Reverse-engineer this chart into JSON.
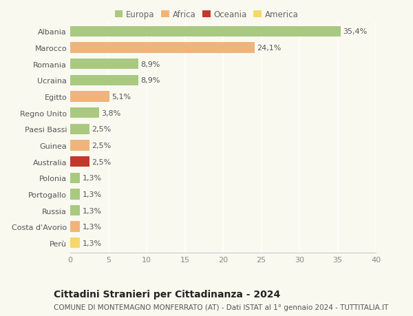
{
  "categories": [
    "Albania",
    "Marocco",
    "Romania",
    "Ucraina",
    "Egitto",
    "Regno Unito",
    "Paesi Bassi",
    "Guinea",
    "Australia",
    "Polonia",
    "Portogallo",
    "Russia",
    "Costa d'Avorio",
    "Perù"
  ],
  "values": [
    35.4,
    24.1,
    8.9,
    8.9,
    5.1,
    3.8,
    2.5,
    2.5,
    2.5,
    1.3,
    1.3,
    1.3,
    1.3,
    1.3
  ],
  "labels": [
    "35,4%",
    "24,1%",
    "8,9%",
    "8,9%",
    "5,1%",
    "3,8%",
    "2,5%",
    "2,5%",
    "2,5%",
    "1,3%",
    "1,3%",
    "1,3%",
    "1,3%",
    "1,3%"
  ],
  "colors": [
    "#a8c97f",
    "#f0b47a",
    "#a8c97f",
    "#a8c97f",
    "#f0b47a",
    "#a8c97f",
    "#a8c97f",
    "#f0b47a",
    "#c0392b",
    "#a8c97f",
    "#a8c97f",
    "#a8c97f",
    "#f0b47a",
    "#f5d76e"
  ],
  "legend_labels": [
    "Europa",
    "Africa",
    "Oceania",
    "America"
  ],
  "legend_colors": [
    "#a8c97f",
    "#f0b47a",
    "#c0392b",
    "#f5d76e"
  ],
  "xlim": [
    0,
    40
  ],
  "xticks": [
    0,
    5,
    10,
    15,
    20,
    25,
    30,
    35,
    40
  ],
  "title": "Cittadini Stranieri per Cittadinanza - 2024",
  "subtitle": "COMUNE DI MONTEMAGNO MONFERRATO (AT) - Dati ISTAT al 1° gennaio 2024 - TUTTITALIA.IT",
  "bg_color": "#f9f9f0",
  "grid_color": "#ffffff",
  "bar_height": 0.65,
  "label_fontsize": 8,
  "tick_fontsize": 8,
  "title_fontsize": 10,
  "subtitle_fontsize": 7.5
}
